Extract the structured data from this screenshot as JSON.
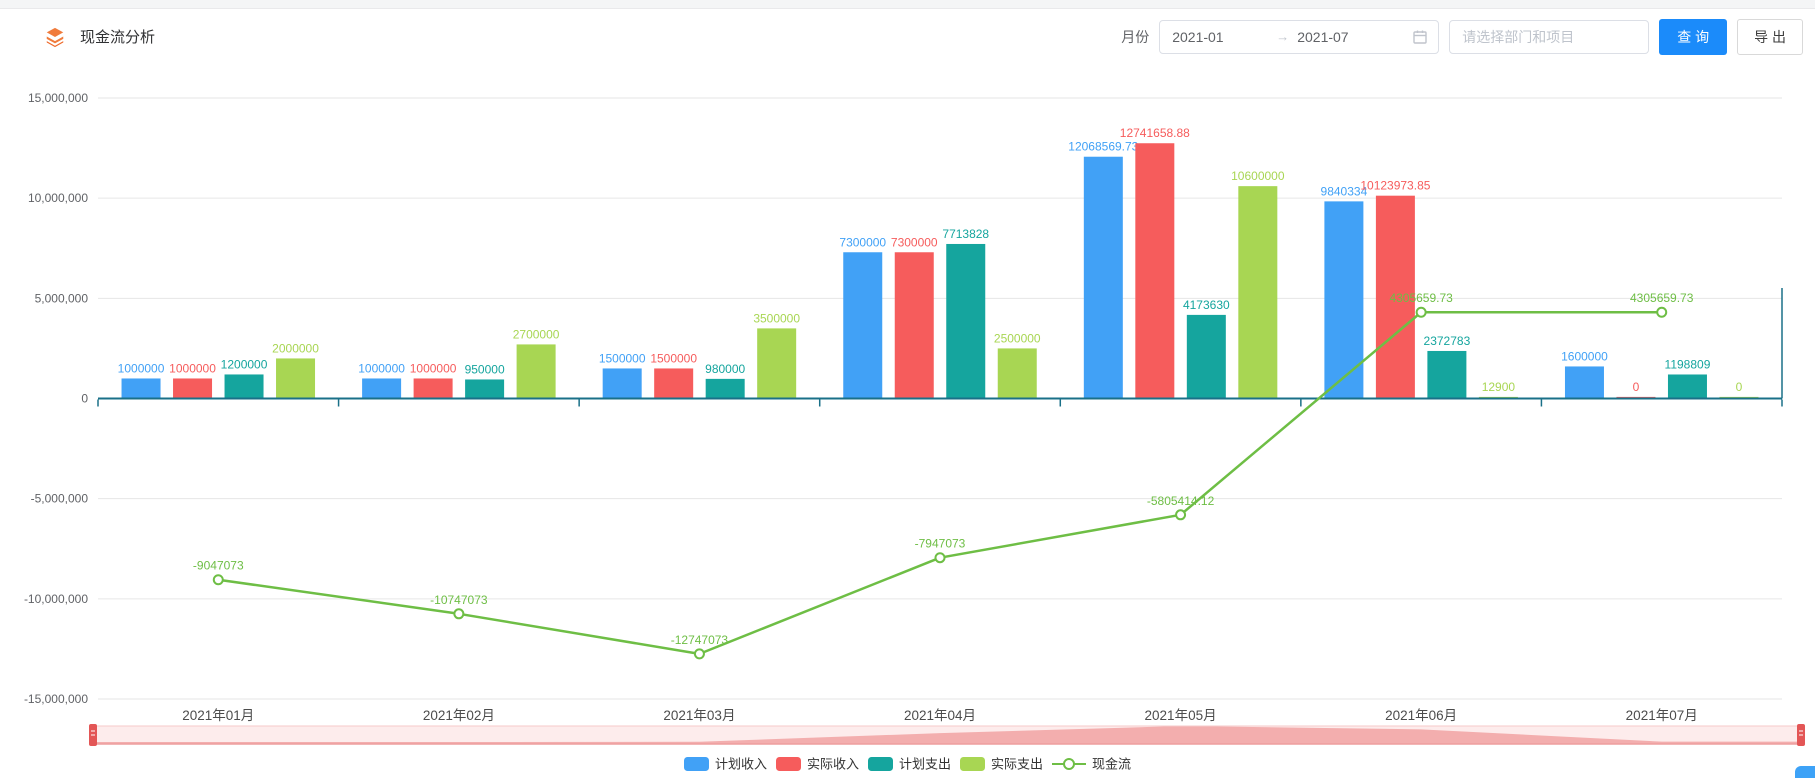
{
  "header": {
    "title": "现金流分析",
    "month_label": "月份",
    "date_start": "2021-01",
    "date_end": "2021-07",
    "range_separator": "→",
    "select_placeholder": "请选择部门和项目",
    "query_label": "查 询",
    "export_label": "导 出"
  },
  "colors": {
    "primary_button": "#1b8bfa",
    "brand_icon": "#f07b3c",
    "axis_line": "#1a7088",
    "gridline": "#e6e6e6",
    "corner_widget": "#3da2f7"
  },
  "chart_data": {
    "type": "bar",
    "categories": [
      "2021年01月",
      "2021年02月",
      "2021年03月",
      "2021年04月",
      "2021年05月",
      "2021年06月",
      "2021年07月"
    ],
    "series": [
      {
        "name": "计划收入",
        "type": "bar",
        "color": "#41a1f6",
        "values": [
          1000000,
          1000000,
          1500000,
          7300000,
          12068569.73,
          9840334,
          1600000
        ]
      },
      {
        "name": "实际收入",
        "type": "bar",
        "color": "#f65c5c",
        "values": [
          1000000,
          1000000,
          1500000,
          7300000,
          12741658.88,
          10123973.85,
          0
        ]
      },
      {
        "name": "计划支出",
        "type": "bar",
        "color": "#15a59e",
        "values": [
          1200000,
          950000,
          980000,
          7713828,
          4173630,
          2372783,
          1198809
        ]
      },
      {
        "name": "实际支出",
        "type": "bar",
        "color": "#a8d653",
        "values": [
          2000000,
          2700000,
          3500000,
          2500000,
          10600000,
          12900,
          0
        ]
      },
      {
        "name": "现金流",
        "type": "line",
        "color": "#6ebe45",
        "values": [
          -9047073,
          -10747073,
          -12747073,
          -7947073,
          -5805414.12,
          4305659.73,
          4305659.73
        ]
      }
    ],
    "ylim": [
      -15000000,
      15000000
    ],
    "ytick_step": 5000000,
    "ytick_labels": [
      "15,000,000",
      "10,000,000",
      "5,000,000",
      "0",
      "-5,000,000",
      "-10,000,000",
      "-15,000,000"
    ],
    "grid": true,
    "legend_position": "bottom",
    "datazoom": {
      "track_color": "#fdecec",
      "shadow_color": "#f3aeae",
      "handle_color": "#e35656",
      "border_top_color": "#f6caca",
      "border_bottom_color": "#ee9d9d"
    }
  }
}
